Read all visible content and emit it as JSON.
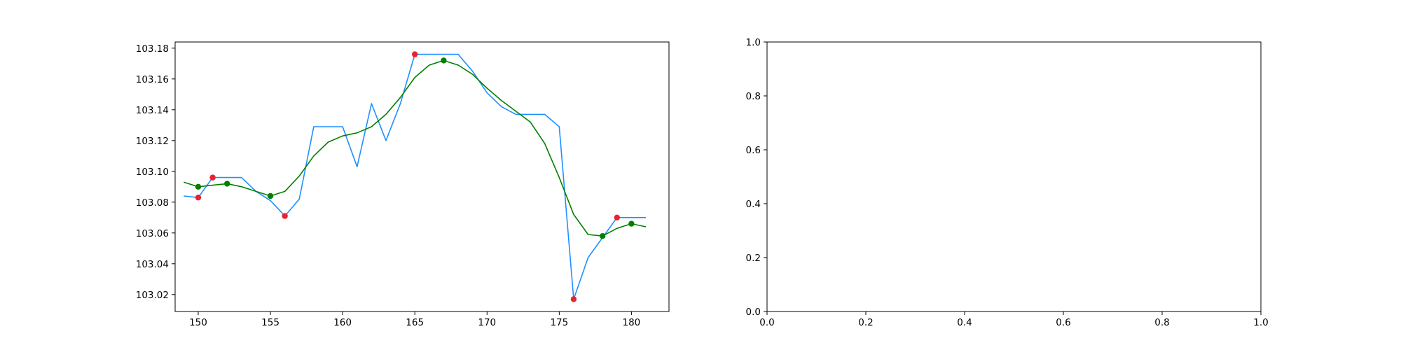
{
  "chart_data": [
    {
      "type": "line",
      "title": "",
      "xlabel": "",
      "ylabel": "",
      "xlim": [
        148.4,
        182.6
      ],
      "ylim": [
        103.009,
        103.184
      ],
      "grid": false,
      "x_ticks": [
        150,
        155,
        160,
        165,
        170,
        175,
        180
      ],
      "y_ticks": [
        103.02,
        103.04,
        103.06,
        103.08,
        103.1,
        103.12,
        103.14,
        103.16,
        103.18
      ],
      "series": [
        {
          "role": "price",
          "type": "line",
          "color": "#1e90ff",
          "x": [
            149,
            150,
            151,
            152,
            153,
            154,
            155,
            156,
            157,
            158,
            159,
            160,
            161,
            162,
            163,
            164,
            165,
            166,
            167,
            168,
            169,
            170,
            171,
            172,
            173,
            174,
            175,
            176,
            177,
            178,
            179,
            180,
            181
          ],
          "y": [
            103.084,
            103.083,
            103.096,
            103.096,
            103.096,
            103.087,
            103.081,
            103.071,
            103.082,
            103.129,
            103.129,
            103.129,
            103.103,
            103.144,
            103.12,
            103.144,
            103.176,
            103.176,
            103.176,
            103.176,
            103.165,
            103.151,
            103.142,
            103.137,
            103.137,
            103.137,
            103.129,
            103.017,
            103.044,
            103.057,
            103.07,
            103.07,
            103.07
          ]
        },
        {
          "role": "smoothed",
          "type": "line",
          "color": "#008000",
          "x": [
            149,
            150,
            151,
            152,
            153,
            154,
            155,
            156,
            157,
            158,
            159,
            160,
            161,
            162,
            163,
            164,
            165,
            166,
            167,
            168,
            169,
            170,
            171,
            172,
            173,
            174,
            175,
            176,
            177,
            178,
            179,
            180,
            181
          ],
          "y": [
            103.093,
            103.09,
            103.091,
            103.092,
            103.09,
            103.087,
            103.084,
            103.087,
            103.097,
            103.11,
            103.119,
            103.123,
            103.125,
            103.129,
            103.137,
            103.148,
            103.161,
            103.169,
            103.172,
            103.169,
            103.163,
            103.154,
            103.146,
            103.139,
            103.132,
            103.118,
            103.096,
            103.072,
            103.059,
            103.058,
            103.063,
            103.066,
            103.064
          ]
        },
        {
          "role": "extrema-raw",
          "type": "scatter",
          "color": "#e8232e",
          "x": [
            150,
            151,
            156,
            165,
            176,
            179
          ],
          "y": [
            103.083,
            103.096,
            103.071,
            103.176,
            103.017,
            103.07
          ]
        },
        {
          "role": "extrema-smoothed",
          "type": "scatter",
          "color": "#008000",
          "x": [
            150,
            152,
            155,
            167,
            178,
            180
          ],
          "y": [
            103.09,
            103.092,
            103.084,
            103.172,
            103.058,
            103.066
          ]
        }
      ]
    },
    {
      "type": "line",
      "title": "",
      "xlabel": "",
      "ylabel": "",
      "xlim": [
        0,
        1
      ],
      "ylim": [
        0,
        1
      ],
      "grid": false,
      "x_ticks": [
        0.0,
        0.2,
        0.4,
        0.6,
        0.8,
        1.0
      ],
      "y_ticks": [
        0.0,
        0.2,
        0.4,
        0.6,
        0.8,
        1.0
      ],
      "series": []
    }
  ]
}
